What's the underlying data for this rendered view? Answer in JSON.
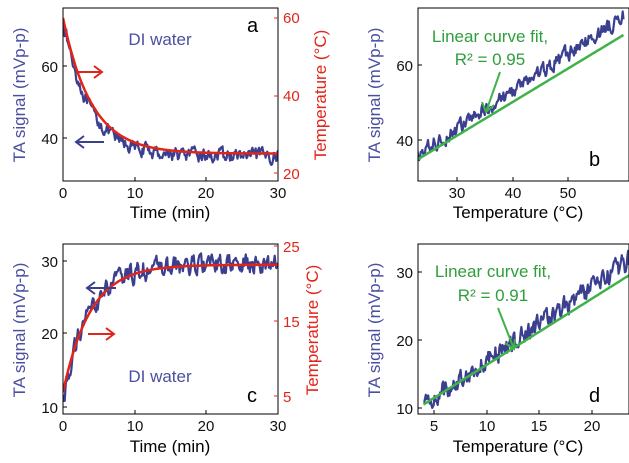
{
  "colors": {
    "signal": "#3b3f8f",
    "signal_text": "#4b4fa0",
    "temperature": "#e0251b",
    "fit": "#3fb24a",
    "fit_text": "#2f9e3c",
    "axis": "#000000"
  },
  "chart_data": [
    {
      "id": "a",
      "type": "line",
      "panel_label": "a",
      "annotation": "DI water",
      "xlabel": "Time (min)",
      "ylabel": "TA signal (mVp-p)",
      "y2label": "Temperature (°C)",
      "xlim": [
        0,
        30
      ],
      "ylim": [
        32,
        75
      ],
      "y2lim": [
        20,
        62
      ],
      "xticks": [
        "0",
        "10",
        "20",
        "30"
      ],
      "yticks": [
        "40",
        "60"
      ],
      "y2ticks": [
        "20",
        "40",
        "60"
      ],
      "series": [
        {
          "axis": "left",
          "color": "#3b3f8f",
          "shape": "noisy_decay",
          "x_range": [
            0,
            30
          ],
          "start": 73,
          "end": 35,
          "tau_min": 3.6,
          "noise": 1.6
        },
        {
          "axis": "right",
          "color": "#e0251b",
          "shape": "decay",
          "x_range": [
            0,
            30
          ],
          "start": 60,
          "end": 25,
          "tau_min": 4.0
        }
      ]
    },
    {
      "id": "b",
      "type": "line",
      "panel_label": "b",
      "annotation_line1": "Linear curve fit,",
      "annotation_line2": "R² = 0.95",
      "xlabel": "Temperature (°C)",
      "ylabel": "TA signal (mVp-p)",
      "xlim": [
        22,
        60
      ],
      "ylim": [
        30,
        76
      ],
      "xticks": [
        "30",
        "40",
        "50"
      ],
      "yticks": [
        "40",
        "60"
      ],
      "series": [
        {
          "axis": "left",
          "color": "#3b3f8f",
          "shape": "noisy_linear",
          "x_range": [
            22,
            60
          ],
          "start": 35,
          "end": 73,
          "noise": 1.7
        },
        {
          "axis": "left",
          "color": "#3fb24a",
          "shape": "linear",
          "x_range": [
            22,
            60
          ],
          "start": 34,
          "end": 68
        }
      ]
    },
    {
      "id": "c",
      "type": "line",
      "panel_label": "c",
      "annotation": "DI water",
      "xlabel": "Time (min)",
      "ylabel": "TA signal (mVp-p)",
      "y2label": "Temperature (°C)",
      "xlim": [
        0,
        30
      ],
      "ylim": [
        9,
        33
      ],
      "y2lim": [
        3,
        25
      ],
      "xticks": [
        "0",
        "10",
        "20",
        "30"
      ],
      "yticks": [
        "10",
        "20",
        "30"
      ],
      "y2ticks": [
        "5",
        "15",
        "25"
      ],
      "series": [
        {
          "axis": "left",
          "color": "#3b3f8f",
          "shape": "noisy_rise",
          "x_range": [
            0,
            30
          ],
          "start": 11,
          "end": 29.5,
          "tau_min": 3.6,
          "noise": 1.2
        },
        {
          "axis": "right",
          "color": "#e0251b",
          "shape": "rise",
          "x_range": [
            0,
            30
          ],
          "start": 5.5,
          "end": 22.5,
          "tau_min": 3.8
        }
      ]
    },
    {
      "id": "d",
      "type": "line",
      "panel_label": "d",
      "annotation_line1": "Linear curve fit,",
      "annotation_line2": "R² = 0.91",
      "xlabel": "Temperature (°C)",
      "ylabel": "TA signal (mVp-p)",
      "xlim": [
        3.5,
        23.5
      ],
      "ylim": [
        9,
        34
      ],
      "xticks": [
        "5",
        "10",
        "15",
        "20"
      ],
      "yticks": [
        "10",
        "20",
        "30"
      ],
      "series": [
        {
          "axis": "left",
          "color": "#3b3f8f",
          "shape": "noisy_linear",
          "x_range": [
            4,
            23.5
          ],
          "start": 10.5,
          "end": 31.5,
          "noise": 1.3
        },
        {
          "axis": "left",
          "color": "#3fb24a",
          "shape": "linear",
          "x_range": [
            4,
            23.5
          ],
          "start": 10.5,
          "end": 29.5
        }
      ]
    }
  ]
}
